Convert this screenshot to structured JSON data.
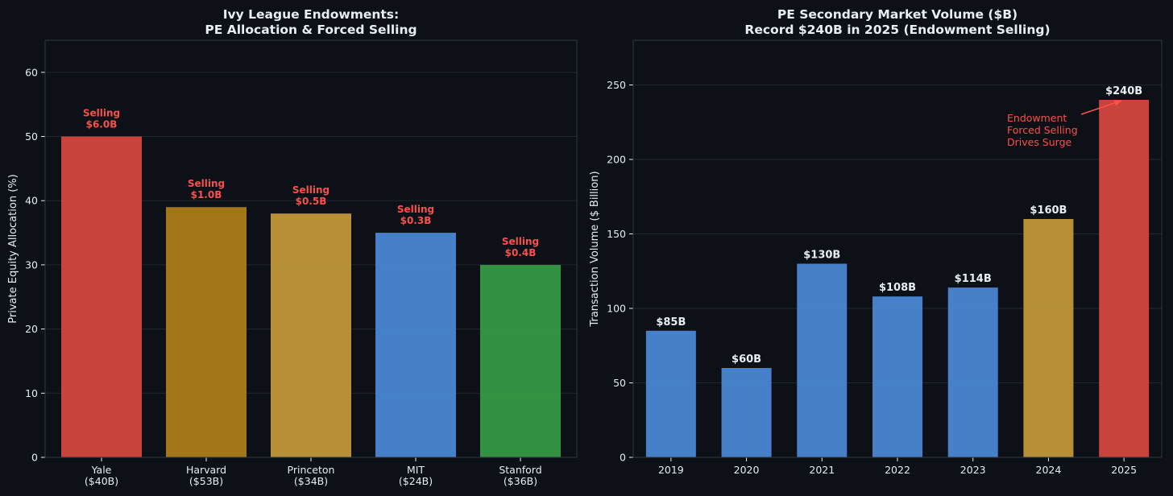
{
  "colors": {
    "background": "#0d1117",
    "plot_border": "#30363d",
    "grid": "#21262d",
    "text": "#e6edf3",
    "annotation": "#f85149",
    "red": "#d9463f",
    "dark_gold": "#b07f1a",
    "gold": "#c49a3a",
    "blue": "#4a8ad8",
    "green": "#369d45"
  },
  "chart_data": [
    {
      "type": "bar",
      "title_lines": [
        "Ivy League Endowments:",
        "PE Allocation & Forced Selling"
      ],
      "xlabel": "",
      "ylabel": "Private Equity Allocation (%)",
      "ylim": [
        0,
        65
      ],
      "yticks": [
        0,
        10,
        20,
        30,
        40,
        50,
        60
      ],
      "grid": true,
      "categories": [
        [
          "Yale",
          "($40B)"
        ],
        [
          "Harvard",
          "($53B)"
        ],
        [
          "Princeton",
          "($34B)"
        ],
        [
          "MIT",
          "($24B)"
        ],
        [
          "Stanford",
          "($36B)"
        ]
      ],
      "values": [
        50,
        39,
        38,
        35,
        30
      ],
      "bar_colors": [
        "#d9463f",
        "#b07f1a",
        "#c49a3a",
        "#4a8ad8",
        "#369d45"
      ],
      "data_labels": [
        [
          "Selling",
          "$6.0B"
        ],
        [
          "Selling",
          "$1.0B"
        ],
        [
          "Selling",
          "$0.5B"
        ],
        [
          "Selling",
          "$0.3B"
        ],
        [
          "Selling",
          "$0.4B"
        ]
      ]
    },
    {
      "type": "bar",
      "title_lines": [
        "PE Secondary Market Volume ($B)",
        "Record $240B in 2025 (Endowment Selling)"
      ],
      "xlabel": "",
      "ylabel": "Transaction Volume ($ Billion)",
      "ylim": [
        0,
        280
      ],
      "yticks": [
        0,
        50,
        100,
        150,
        200,
        250
      ],
      "grid": true,
      "categories": [
        "2019",
        "2020",
        "2021",
        "2022",
        "2023",
        "2024",
        "2025"
      ],
      "values": [
        85,
        60,
        130,
        108,
        114,
        160,
        240
      ],
      "bar_colors": [
        "#4a8ad8",
        "#4a8ad8",
        "#4a8ad8",
        "#4a8ad8",
        "#4a8ad8",
        "#c49a3a",
        "#d9463f"
      ],
      "data_labels": [
        "$85B",
        "$60B",
        "$130B",
        "$108B",
        "$114B",
        "$160B",
        "$240B"
      ],
      "annotation": {
        "lines": [
          "Endowment",
          "Forced Selling",
          "Drives Surge"
        ],
        "target_category": "2025",
        "target_value": 240
      }
    }
  ]
}
